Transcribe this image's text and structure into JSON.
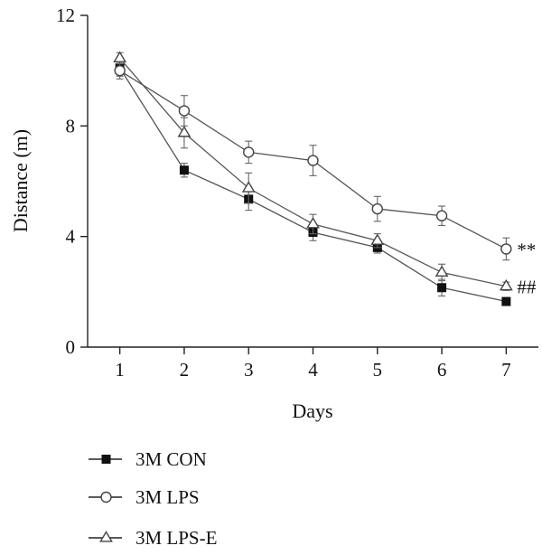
{
  "chart_data": {
    "type": "line",
    "xlabel": "Days",
    "ylabel": "Distance (m)",
    "x": [
      1,
      2,
      3,
      4,
      5,
      6,
      7
    ],
    "xlim": [
      0.5,
      7.5
    ],
    "ylim": [
      0,
      12
    ],
    "xticks": [
      "1",
      "2",
      "3",
      "4",
      "5",
      "6",
      "7"
    ],
    "yticks": [
      "0",
      "4",
      "8",
      "12"
    ],
    "grid": false,
    "legend_position": "bottom-left",
    "series": [
      {
        "name": "3M CON",
        "marker": "filled-square",
        "values": [
          10.1,
          6.4,
          5.35,
          4.15,
          3.6,
          2.15,
          1.65
        ],
        "errors": [
          0.3,
          0.25,
          0.4,
          0.3,
          0.2,
          0.3,
          0.1
        ]
      },
      {
        "name": "3M LPS",
        "marker": "open-circle",
        "values": [
          10.0,
          8.55,
          7.05,
          6.75,
          5.0,
          4.75,
          3.55
        ],
        "errors": [
          0.3,
          0.55,
          0.4,
          0.55,
          0.45,
          0.35,
          0.4
        ]
      },
      {
        "name": "3M LPS-E",
        "marker": "open-triangle",
        "values": [
          10.45,
          7.75,
          5.75,
          4.45,
          3.85,
          2.7,
          2.2
        ],
        "errors": [
          0.2,
          0.55,
          0.55,
          0.35,
          0.25,
          0.3,
          0.15
        ]
      }
    ],
    "annotations": [
      {
        "text": "**",
        "series": "3M LPS",
        "x": 7
      },
      {
        "text": "##",
        "series": "3M LPS-E",
        "x": 7
      }
    ]
  }
}
